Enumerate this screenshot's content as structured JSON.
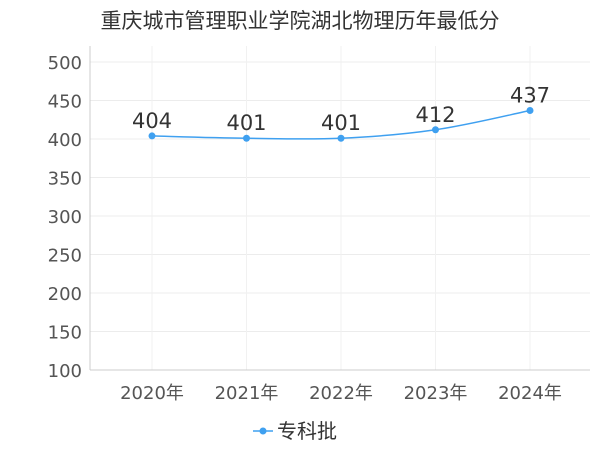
{
  "chart_data": {
    "type": "line",
    "title": "重庆城市管理职业学院湖北物理历年最低分",
    "xlabel": "",
    "ylabel": "",
    "categories": [
      "2020年",
      "2021年",
      "2022年",
      "2023年",
      "2024年"
    ],
    "series": [
      {
        "name": "专科批",
        "values": [
          404,
          401,
          401,
          412,
          437
        ],
        "color": "#3fa0f0"
      }
    ],
    "ylim": [
      100,
      500
    ],
    "yticks": [
      100,
      150,
      200,
      250,
      300,
      350,
      400,
      450,
      500
    ],
    "ytick_labels": [
      "100",
      "150",
      "200",
      "250",
      "300",
      "350",
      "400",
      "450",
      "500"
    ],
    "data_labels": [
      "404",
      "401",
      "401",
      "412",
      "437"
    ],
    "grid": true,
    "legend": "bottom-center",
    "smooth": true
  }
}
